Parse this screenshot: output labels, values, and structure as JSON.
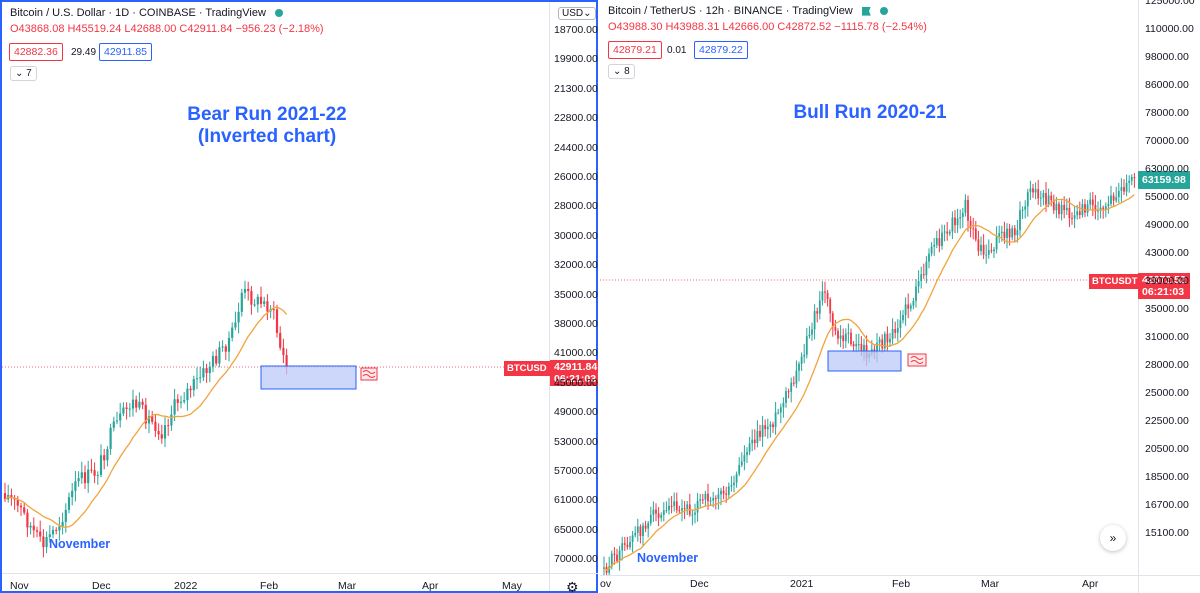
{
  "colors": {
    "up": "#26a69a",
    "down": "#f23645",
    "ma": "#f2a33a",
    "accent": "#2962ff",
    "box": "#bbcaf7"
  },
  "left": {
    "header": {
      "title": "Bitcoin / U.S. Dollar · 1D · COINBASE · TradingView",
      "ohlc": "O43868.08 H45519.24 L42688.00 C42911.84 −956.23 (−2.18%)"
    },
    "bid": "42882.36",
    "spread": "29.49",
    "ask": "42911.85",
    "indicators_count": "7",
    "usd_button": "USD",
    "title_line1": "Bear Run 2021-22",
    "title_line2": "(Inverted chart)",
    "note": "November",
    "symbol_tag": "BTCUSD",
    "last_price": "42911.84",
    "countdown": "06:21:03",
    "settings_icon": "gear-icon",
    "yaxis_labels": [
      "18700.00",
      "19900.00",
      "21300.00",
      "22800.00",
      "24400.00",
      "26000.00",
      "28000.00",
      "30000.00",
      "32000.00",
      "35000.00",
      "38000.00",
      "41000.00",
      "45000.00",
      "49000.00",
      "53000.00",
      "57000.00",
      "61000.00",
      "65000.00",
      "70000.00"
    ],
    "xaxis_labels": [
      "Nov",
      "Dec",
      "2022",
      "Feb",
      "Mar",
      "Apr",
      "May"
    ]
  },
  "right": {
    "header": {
      "title": "Bitcoin / TetherUS · 12h · BINANCE · TradingView",
      "ohlc": "O43988.30 H43988.31 L42666.00 C42872.52 −1115.78 (−2.54%)"
    },
    "bid": "42879.21",
    "spread": "0.01",
    "ask": "42879.22",
    "indicators_count": "8",
    "title_line1": "Bull Run 2020-21",
    "note": "November",
    "symbol_tag": "BTCUSDT",
    "last_price": "42872.52",
    "countdown": "06:21:03",
    "current_high": "63159.98",
    "scroll_icon": "double-chevron-right-icon",
    "yaxis_labels": [
      "125000.00",
      "110000.00",
      "98000.00",
      "86000.00",
      "78000.00",
      "70000.00",
      "63000.00",
      "55000.00",
      "49000.00",
      "43000.00",
      "39000.00",
      "35000.00",
      "31000.00",
      "28000.00",
      "25000.00",
      "22500.00",
      "20500.00",
      "18500.00",
      "16700.00",
      "15100.00"
    ],
    "xaxis_labels": [
      "ov",
      "Dec",
      "2021",
      "Feb",
      "Mar",
      "Apr"
    ]
  },
  "chart_data": [
    {
      "type": "candlestick",
      "title": "Bear Run 2021-22 (Inverted chart)",
      "symbol": "BTCUSD",
      "inverted_scale": true,
      "ylim": [
        18700,
        70000
      ],
      "x_ticks": [
        "Nov",
        "Dec",
        "2022",
        "Feb",
        "Mar",
        "Apr",
        "May"
      ],
      "approx_close_path": [
        {
          "x": "2021-11",
          "y": 60000
        },
        {
          "x": "2021-12-01",
          "y": 57000
        },
        {
          "x": "2021-12-15",
          "y": 48000
        },
        {
          "x": "2022-01-01",
          "y": 47000
        },
        {
          "x": "2022-01-10",
          "y": 41000
        },
        {
          "x": "2022-01-24",
          "y": 35000
        },
        {
          "x": "2022-02-08",
          "y": 42911.84
        }
      ],
      "moving_average": true,
      "last_price": 42911.84,
      "highlight_box_range": [
        41000,
        45500
      ]
    },
    {
      "type": "candlestick",
      "title": "Bull Run 2020-21",
      "symbol": "BTCUSDT",
      "inverted_scale": false,
      "ylim": [
        15100,
        125000
      ],
      "x_ticks": [
        "ov",
        "Dec",
        "2021",
        "Feb",
        "Mar",
        "Apr"
      ],
      "approx_close_path": [
        {
          "x": "2020-11",
          "y": 15100
        },
        {
          "x": "2020-12-01",
          "y": 19000
        },
        {
          "x": "2020-12-20",
          "y": 23500
        },
        {
          "x": "2021-01-08",
          "y": 41000
        },
        {
          "x": "2021-01-25",
          "y": 31000
        },
        {
          "x": "2021-02-21",
          "y": 57000
        },
        {
          "x": "2021-03-13",
          "y": 61000
        },
        {
          "x": "2021-04-14",
          "y": 63159.98
        }
      ],
      "moving_average": true,
      "current_high": 63159.98,
      "last_price": 42872.52,
      "highlight_box_range": [
        29000,
        33000
      ]
    }
  ]
}
